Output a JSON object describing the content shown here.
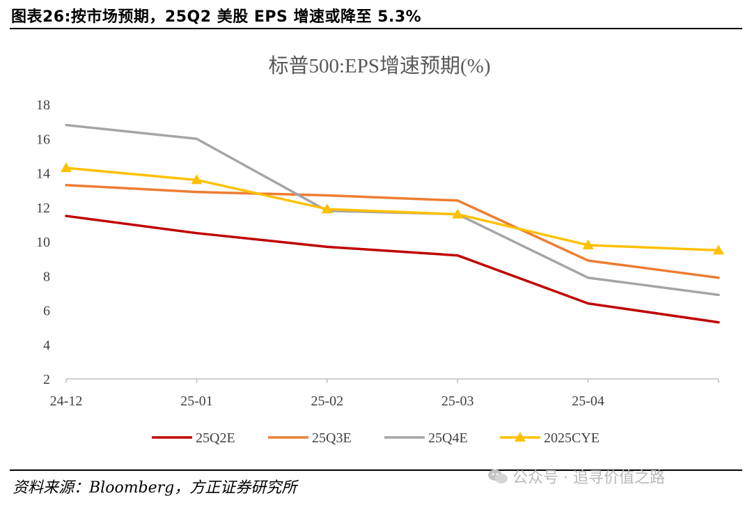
{
  "header": {
    "figure_title": "图表26:按市场预期，25Q2 美股 EPS 增速或降至 5.3%"
  },
  "footer": {
    "source": "资料来源：Bloomberg，方正证券研究所",
    "watermark": "公众号 · 追寻价值之路"
  },
  "chart_data": {
    "type": "line",
    "title": "标普500:EPS增速预期(%)",
    "categories": [
      "24-12",
      "25-01",
      "25-02",
      "25-03",
      "25-04",
      ""
    ],
    "ylim": [
      2,
      18
    ],
    "yticks": [
      2,
      4,
      6,
      8,
      10,
      12,
      14,
      16,
      18
    ],
    "grid": false,
    "legend": "bottom",
    "series": [
      {
        "name": "25Q2E",
        "color": "#C00000",
        "marker": "none",
        "values": [
          11.5,
          10.5,
          9.7,
          9.2,
          6.4,
          5.3
        ]
      },
      {
        "name": "25Q3E",
        "color": "#ED7D31",
        "marker": "none",
        "values": [
          13.3,
          12.9,
          12.7,
          12.4,
          8.9,
          7.9
        ]
      },
      {
        "name": "25Q4E",
        "color": "#A5A5A5",
        "marker": "none",
        "values": [
          16.8,
          16.0,
          11.8,
          11.6,
          7.9,
          6.9
        ]
      },
      {
        "name": "2025CYE",
        "color": "#FFC000",
        "marker": "triangle",
        "values": [
          14.3,
          13.6,
          11.9,
          11.6,
          9.8,
          9.5
        ]
      }
    ]
  }
}
